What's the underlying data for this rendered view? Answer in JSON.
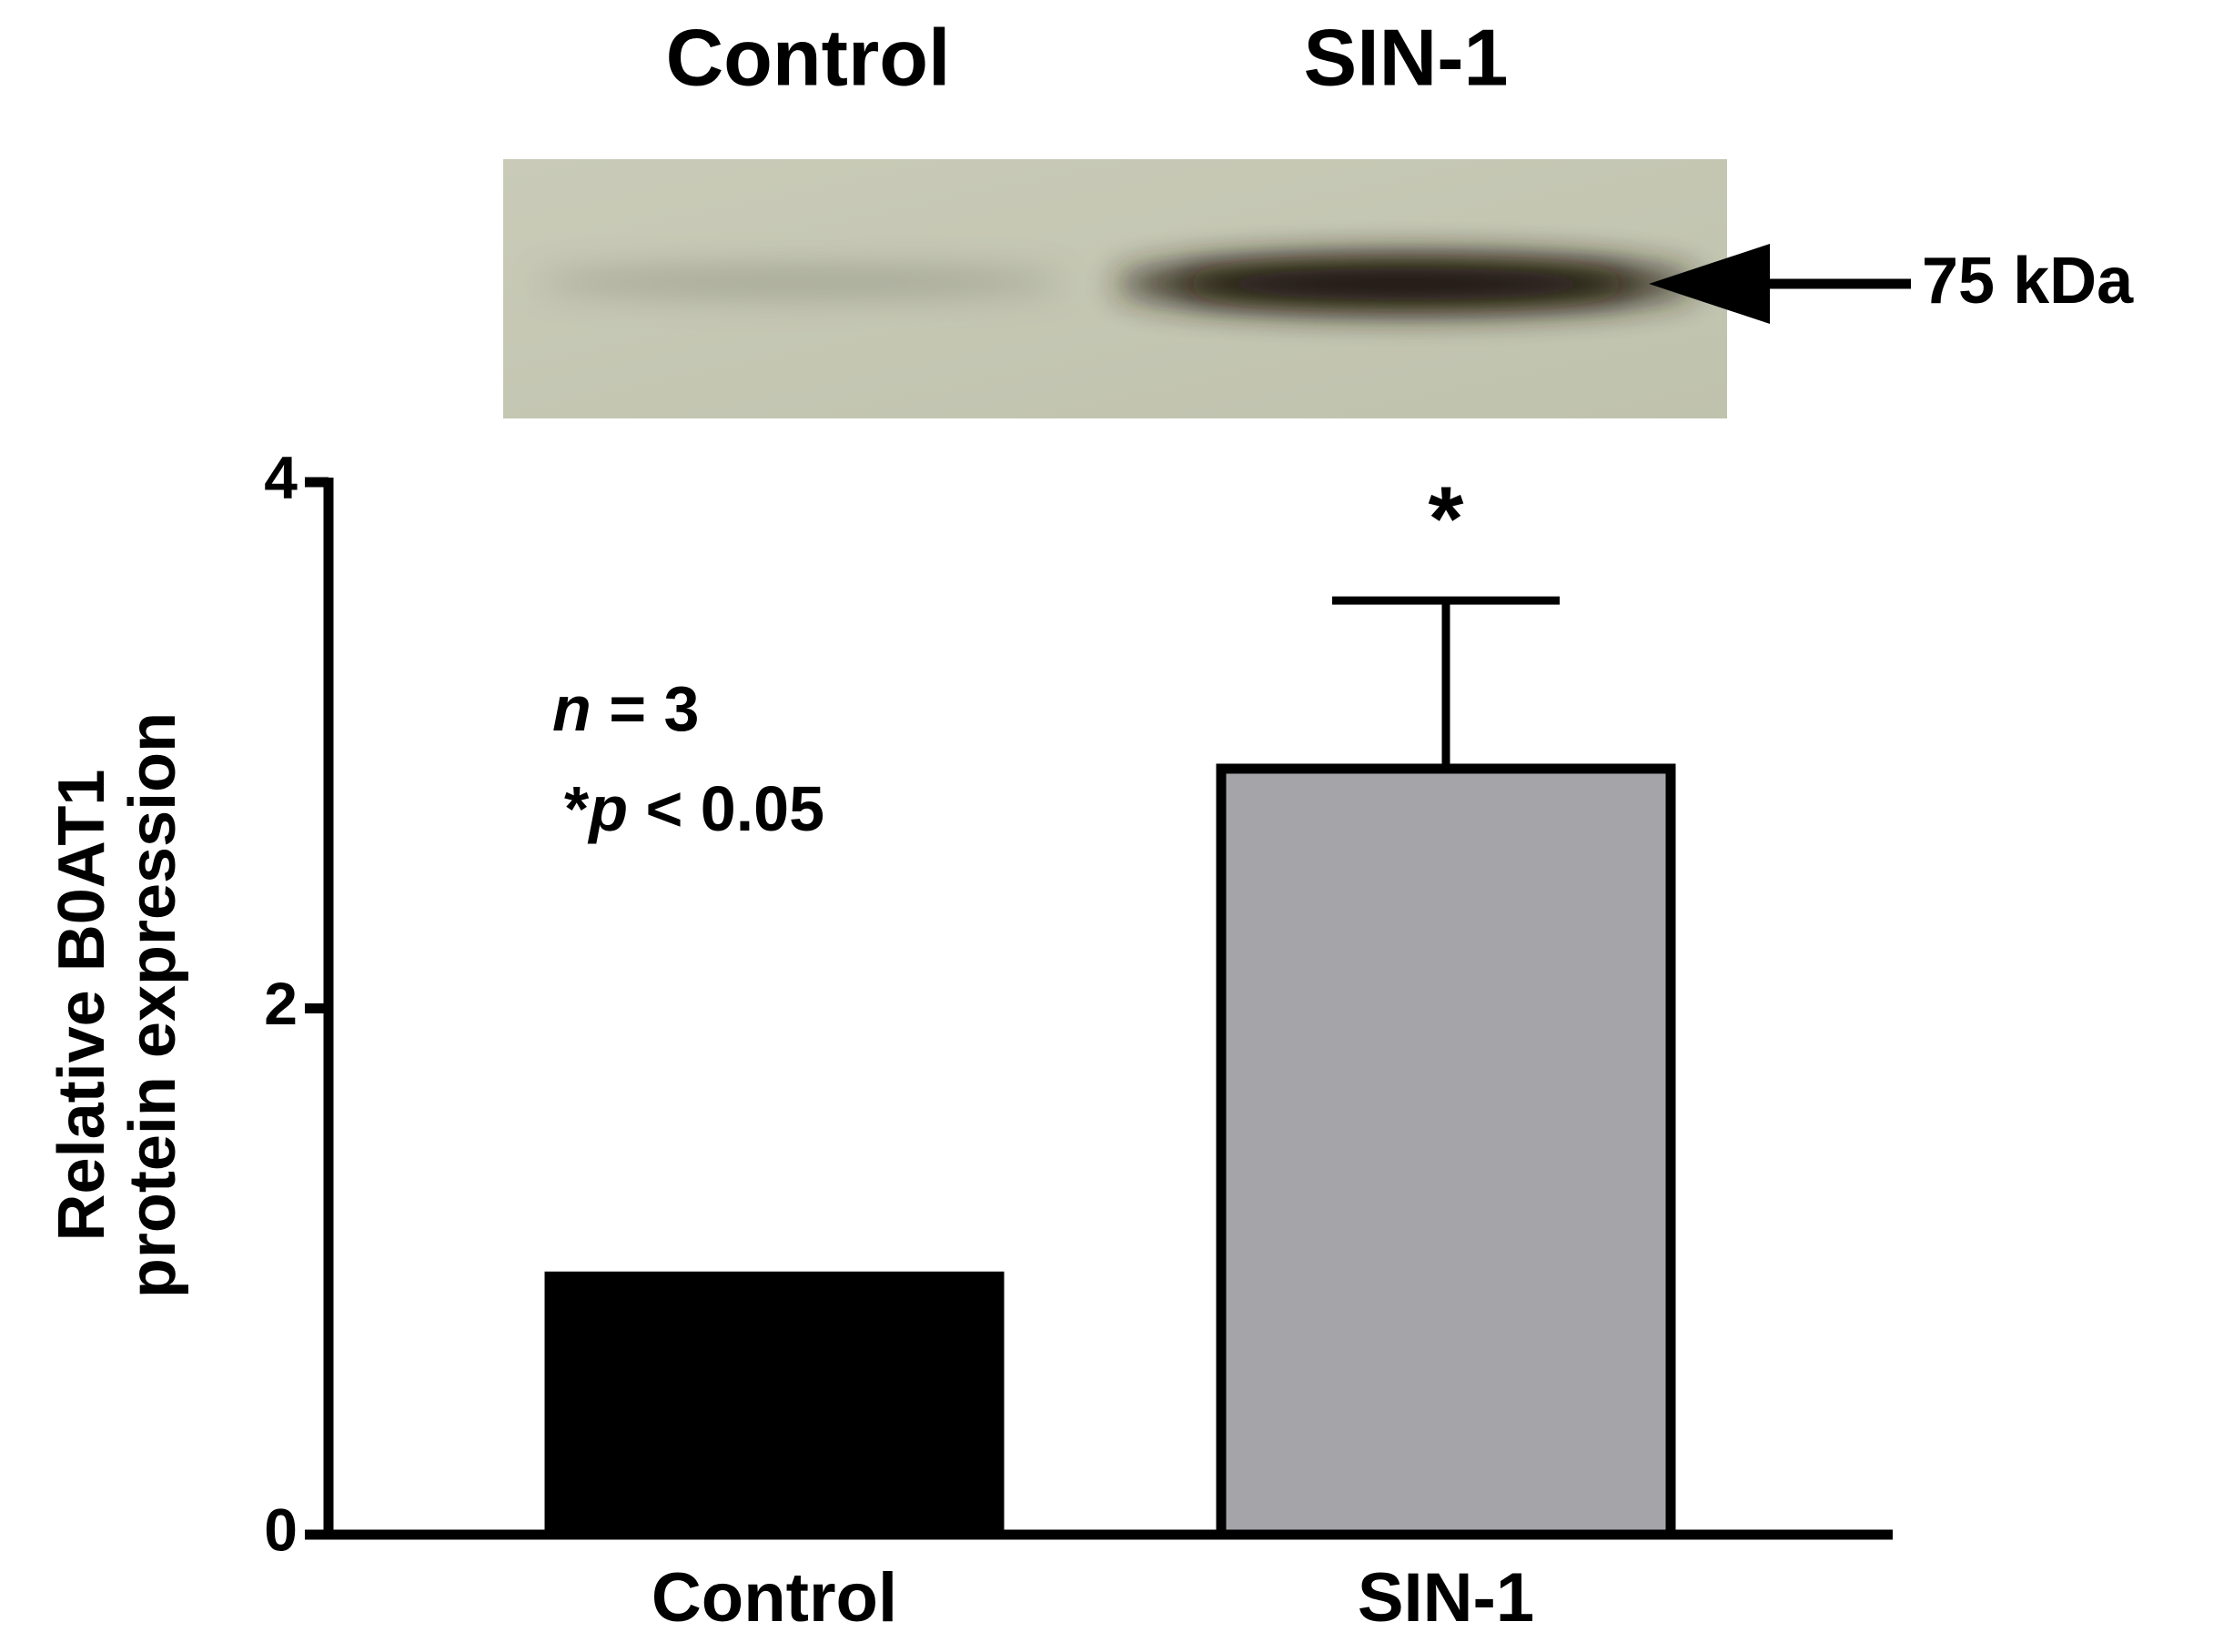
{
  "chart_data": {
    "type": "bar",
    "blot": {
      "lane_labels": [
        "Control",
        "SIN-1"
      ],
      "marker": "75 kDa"
    },
    "y_label": [
      "Relative B0AT1",
      "protein expression"
    ],
    "categories": [
      "Control",
      "SIN-1"
    ],
    "values": [
      1.0,
      2.93
    ],
    "errors": [
      null,
      0.62
    ],
    "colors": [
      "#000000",
      "#a5a4a9"
    ],
    "significance": [
      null,
      "*"
    ],
    "annotation_lines": [
      {
        "parts": [
          {
            "text": "n",
            "italic": true
          },
          {
            "text": " = 3"
          }
        ]
      },
      {
        "parts": [
          {
            "text": "*"
          },
          {
            "text": "p",
            "italic": true
          },
          {
            "text": " < 0.05"
          }
        ]
      }
    ],
    "ylim": [
      0,
      4
    ],
    "yticks": [
      0,
      2,
      4
    ]
  }
}
